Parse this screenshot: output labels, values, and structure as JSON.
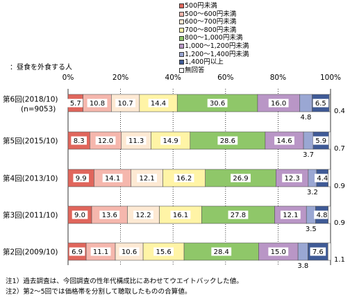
{
  "chart_data": {
    "type": "bar",
    "orientation": "horizontal",
    "stacked": true,
    "normalized": true,
    "subtitle": "：昼食を外食する人",
    "xlim": [
      0,
      100
    ],
    "xticks": [
      "0%",
      "20%",
      "40%",
      "60%",
      "80%",
      "100%"
    ],
    "grid": true,
    "legend_position": "top-right",
    "legend": [
      {
        "name": "500円未満",
        "color": "#e0665c"
      },
      {
        "name": "500～600円未満",
        "color": "#f5b7ad"
      },
      {
        "name": "600～700円未満",
        "color": "#fde9d3"
      },
      {
        "name": "700～800円未満",
        "color": "#fff4a6"
      },
      {
        "name": "800～1,000円未満",
        "color": "#8fc769"
      },
      {
        "name": "1,000～1,200円未満",
        "color": "#b996c6"
      },
      {
        "name": "1,200～1,400円未満",
        "color": "#9aa7d3"
      },
      {
        "name": "1,400円以上",
        "color": "#3f5a96"
      },
      {
        "name": "無回答",
        "color": "#ffffff"
      }
    ],
    "rows": [
      {
        "label": "第6回(2018/10)",
        "sublabel": "(n=9053)",
        "values": [
          5.7,
          10.8,
          10.7,
          14.4,
          30.6,
          16.0,
          4.8,
          6.5,
          0.4
        ]
      },
      {
        "label": "第5回(2015/10)",
        "sublabel": "",
        "values": [
          8.3,
          12.0,
          11.3,
          14.9,
          28.6,
          14.6,
          3.7,
          5.9,
          0.7
        ]
      },
      {
        "label": "第4回(2013/10)",
        "sublabel": "",
        "values": [
          9.9,
          14.1,
          12.1,
          16.2,
          26.9,
          12.3,
          3.2,
          4.4,
          0.9
        ]
      },
      {
        "label": "第3回(2011/10)",
        "sublabel": "",
        "values": [
          9.0,
          13.6,
          12.2,
          16.1,
          27.8,
          12.1,
          3.5,
          4.8,
          0.9
        ]
      },
      {
        "label": "第2回(2009/10)",
        "sublabel": "",
        "values": [
          6.9,
          11.1,
          10.6,
          15.6,
          28.4,
          15.0,
          3.8,
          7.6,
          1.1
        ]
      }
    ]
  },
  "notes": [
    "注1）過去調査は、今回調査の性年代構成比にあわせてウエイトバックした値。",
    "注2）第2～5回では価格帯を分割して聴取したものの合算値。"
  ]
}
